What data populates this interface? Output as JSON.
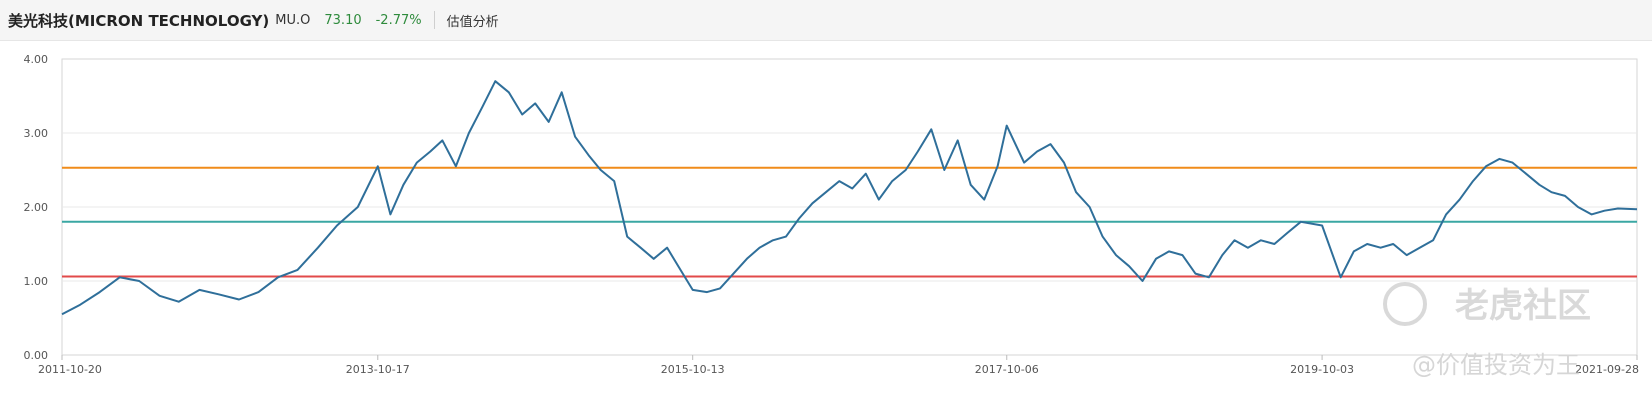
{
  "header": {
    "title": "美光科技(MICRON TECHNOLOGY)",
    "ticker": "MU.O",
    "price": "73.10",
    "change": "-2.77%",
    "menu": "估值分析"
  },
  "watermark": {
    "brand": "老虎社区",
    "handle": "@价值投资为王"
  },
  "chart_data": {
    "type": "line",
    "title": "",
    "xlabel": "",
    "ylabel": "",
    "ylim": [
      0,
      4
    ],
    "yticks": [
      "0.00",
      "1.00",
      "2.00",
      "3.00",
      "4.00"
    ],
    "xtick_labels": [
      "2011-10-20",
      "2013-10-17",
      "2015-10-13",
      "2017-10-06",
      "2019-10-03",
      "2021-09-28"
    ],
    "grid": "horizontal",
    "reference_lines": [
      {
        "value": 2.53,
        "color": "#f08c1a"
      },
      {
        "value": 1.8,
        "color": "#3aa7a3"
      },
      {
        "value": 1.06,
        "color": "#e24a4a"
      }
    ],
    "series": [
      {
        "color": "#2f6f9a",
        "x": [
          "2011-10-20",
          "2011-12-01",
          "2012-01-15",
          "2012-03-01",
          "2012-04-15",
          "2012-06-01",
          "2012-07-15",
          "2012-09-01",
          "2012-10-15",
          "2012-12-01",
          "2013-01-15",
          "2013-03-01",
          "2013-04-15",
          "2013-06-01",
          "2013-07-15",
          "2013-09-01",
          "2013-10-17",
          "2013-11-15",
          "2013-12-15",
          "2014-01-15",
          "2014-02-15",
          "2014-03-15",
          "2014-04-15",
          "2014-05-15",
          "2014-06-15",
          "2014-07-15",
          "2014-08-15",
          "2014-09-15",
          "2014-10-15",
          "2014-11-15",
          "2014-12-15",
          "2015-01-15",
          "2015-02-15",
          "2015-03-15",
          "2015-04-15",
          "2015-05-15",
          "2015-06-15",
          "2015-07-15",
          "2015-08-15",
          "2015-09-15",
          "2015-10-13",
          "2015-11-15",
          "2015-12-15",
          "2016-01-15",
          "2016-02-15",
          "2016-03-15",
          "2016-04-15",
          "2016-05-15",
          "2016-06-15",
          "2016-07-15",
          "2016-08-15",
          "2016-09-15",
          "2016-10-15",
          "2016-11-15",
          "2016-12-15",
          "2017-01-15",
          "2017-02-15",
          "2017-03-15",
          "2017-04-15",
          "2017-05-15",
          "2017-06-15",
          "2017-07-15",
          "2017-08-15",
          "2017-09-15",
          "2017-10-06",
          "2017-11-15",
          "2017-12-15",
          "2018-01-15",
          "2018-02-15",
          "2018-03-15",
          "2018-04-15",
          "2018-05-15",
          "2018-06-15",
          "2018-07-15",
          "2018-08-15",
          "2018-09-15",
          "2018-10-15",
          "2018-11-15",
          "2018-12-15",
          "2019-01-15",
          "2019-02-15",
          "2019-03-15",
          "2019-04-15",
          "2019-05-15",
          "2019-06-15",
          "2019-07-15",
          "2019-08-15",
          "2019-10-03",
          "2019-11-15",
          "2019-12-15",
          "2020-01-15",
          "2020-02-15",
          "2020-03-15",
          "2020-04-15",
          "2020-05-15",
          "2020-06-15",
          "2020-07-15",
          "2020-08-15",
          "2020-09-15",
          "2020-10-15",
          "2020-11-15",
          "2020-12-15",
          "2021-01-15",
          "2021-02-15",
          "2021-03-15",
          "2021-04-15",
          "2021-05-15",
          "2021-06-15",
          "2021-07-15",
          "2021-08-15",
          "2021-09-28"
        ],
        "values": [
          0.55,
          0.68,
          0.85,
          1.05,
          1.0,
          0.8,
          0.72,
          0.88,
          0.82,
          0.75,
          0.85,
          1.05,
          1.15,
          1.45,
          1.75,
          2.0,
          2.55,
          1.9,
          2.3,
          2.6,
          2.75,
          2.9,
          2.55,
          3.0,
          3.35,
          3.7,
          3.55,
          3.25,
          3.4,
          3.15,
          3.55,
          2.95,
          2.7,
          2.5,
          2.35,
          1.6,
          1.45,
          1.3,
          1.45,
          1.15,
          0.88,
          0.85,
          0.9,
          1.1,
          1.3,
          1.45,
          1.55,
          1.6,
          1.85,
          2.05,
          2.2,
          2.35,
          2.25,
          2.45,
          2.1,
          2.35,
          2.5,
          2.75,
          3.05,
          2.5,
          2.9,
          2.3,
          2.1,
          2.55,
          3.1,
          2.6,
          2.75,
          2.85,
          2.6,
          2.2,
          2.0,
          1.6,
          1.35,
          1.2,
          1.0,
          1.3,
          1.4,
          1.35,
          1.1,
          1.05,
          1.35,
          1.55,
          1.45,
          1.55,
          1.5,
          1.65,
          1.8,
          1.75,
          1.05,
          1.4,
          1.5,
          1.45,
          1.5,
          1.35,
          1.45,
          1.55,
          1.9,
          2.1,
          2.35,
          2.55,
          2.65,
          2.6,
          2.45,
          2.3,
          2.2,
          2.15,
          2.0,
          1.9,
          1.95,
          1.98,
          1.97
        ]
      }
    ]
  }
}
